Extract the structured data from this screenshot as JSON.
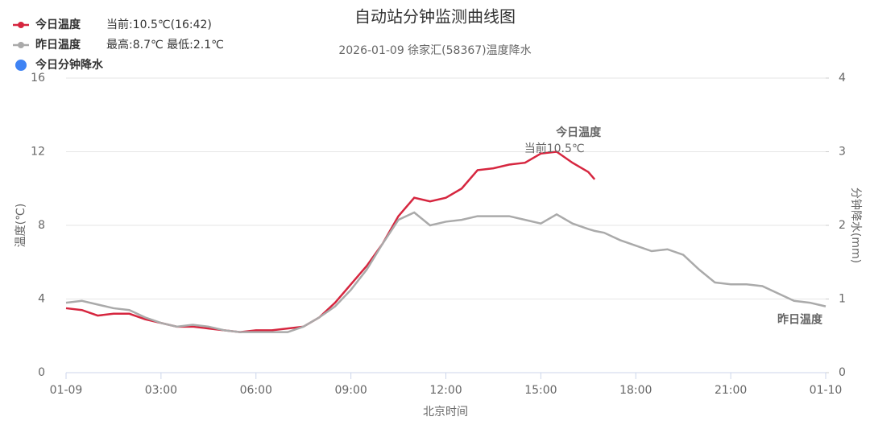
{
  "chart_data": {
    "type": "line",
    "title": "自动站分钟监测曲线图",
    "subtitle": "2026-01-09 徐家汇(58367)温度降水",
    "xlabel": "北京时间",
    "ylabel": "温度(℃)",
    "y2label": "分钟降水(mm)",
    "x": [
      0,
      0.5,
      1,
      1.5,
      2,
      2.5,
      3,
      3.5,
      4,
      4.5,
      5,
      5.5,
      6,
      6.5,
      7,
      7.5,
      8,
      8.5,
      9,
      9.5,
      10,
      10.5,
      11,
      11.5,
      12,
      12.5,
      13,
      13.5,
      14,
      14.5,
      15,
      15.5,
      16,
      16.5,
      16.7,
      17,
      17.5,
      18,
      18.5,
      19,
      19.5,
      20,
      20.5,
      21,
      21.5,
      22,
      22.5,
      23,
      23.5,
      24
    ],
    "xlim": [
      0,
      24
    ],
    "xticks": [
      {
        "value": 0,
        "label": "01-09"
      },
      {
        "value": 3,
        "label": "03:00"
      },
      {
        "value": 6,
        "label": "06:00"
      },
      {
        "value": 9,
        "label": "09:00"
      },
      {
        "value": 12,
        "label": "12:00"
      },
      {
        "value": 15,
        "label": "15:00"
      },
      {
        "value": 18,
        "label": "18:00"
      },
      {
        "value": 21,
        "label": "21:00"
      },
      {
        "value": 24,
        "label": "01-10"
      }
    ],
    "ylim": [
      0,
      16
    ],
    "yticks": [
      0,
      4,
      8,
      12,
      16
    ],
    "y2lim": [
      0,
      4
    ],
    "y2ticks": [
      0,
      1,
      2,
      3,
      4
    ],
    "grid": true,
    "series": [
      {
        "name": "今日温度",
        "info": "当前:10.5℃(16:42)",
        "color": "#d6263f",
        "values": [
          3.5,
          3.4,
          3.1,
          3.2,
          3.2,
          2.9,
          2.7,
          2.5,
          2.5,
          2.4,
          2.3,
          2.2,
          2.3,
          2.3,
          2.4,
          2.5,
          3.0,
          3.8,
          4.8,
          5.8,
          7.0,
          8.5,
          9.5,
          9.3,
          9.5,
          10.0,
          11.0,
          11.1,
          11.3,
          11.4,
          11.9,
          12.0,
          11.4,
          10.9,
          10.5,
          null,
          null,
          null,
          null,
          null,
          null,
          null,
          null,
          null,
          null,
          null,
          null,
          null,
          null,
          null
        ]
      },
      {
        "name": "昨日温度",
        "info": "最高:8.7℃ 最低:2.1℃",
        "color": "#aaaaaa",
        "values": [
          3.8,
          3.9,
          3.7,
          3.5,
          3.4,
          3.0,
          2.7,
          2.5,
          2.6,
          2.5,
          2.3,
          2.2,
          2.2,
          2.2,
          2.2,
          2.5,
          3.0,
          3.6,
          4.5,
          5.6,
          7.0,
          8.3,
          8.7,
          8.0,
          8.2,
          8.3,
          8.5,
          8.5,
          8.5,
          8.3,
          8.1,
          8.6,
          8.1,
          7.8,
          7.7,
          7.6,
          7.2,
          6.9,
          6.6,
          6.7,
          6.4,
          5.6,
          4.9,
          4.8,
          4.8,
          4.7,
          4.3,
          3.9,
          3.8,
          3.6
        ]
      },
      {
        "name": "今日分钟降水",
        "color": "#3f83f4",
        "axis": "y2",
        "values": [
          null,
          null,
          null,
          null,
          null,
          null,
          null,
          null,
          null,
          null,
          null,
          null,
          null,
          null,
          null,
          null,
          null,
          null,
          null,
          null,
          null,
          null,
          null,
          null,
          null,
          null,
          null,
          null,
          null,
          null,
          null,
          null,
          null,
          null,
          null,
          null,
          null,
          null,
          null,
          null,
          null,
          null,
          null,
          null,
          null,
          null,
          null,
          null,
          null,
          null
        ]
      }
    ],
    "annotations": [
      "今日温度",
      "当前10.5℃",
      "昨日温度"
    ]
  }
}
